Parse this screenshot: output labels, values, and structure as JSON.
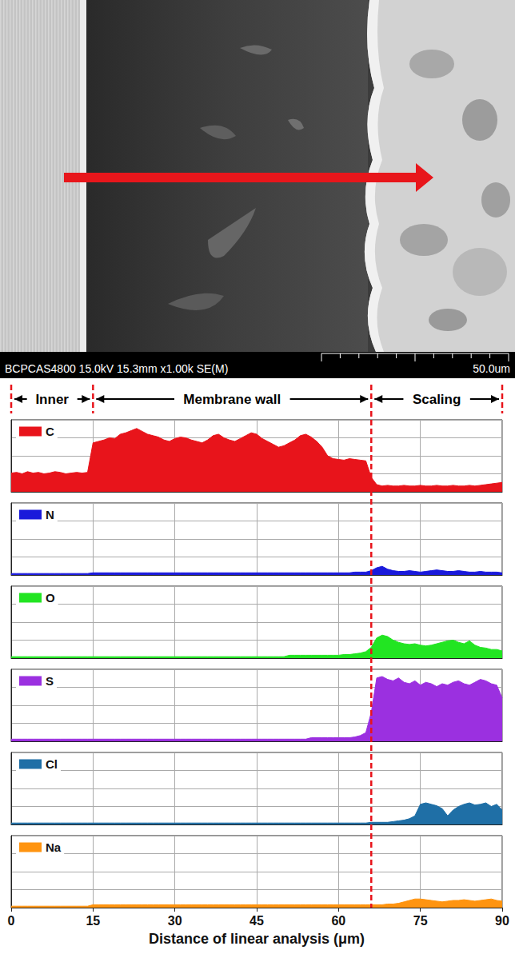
{
  "image": {
    "caption": "BCPCAS4800 15.0kV 15.3mm x1.00k SE(M)",
    "scale_bar": "50.0um"
  },
  "regions": [
    {
      "label": "Inner",
      "from": 0,
      "to": 15
    },
    {
      "label": "Membrane wall",
      "from": 15,
      "to": 66
    },
    {
      "label": "Scaling",
      "from": 66,
      "to": 90
    }
  ],
  "chart_data": [
    {
      "type": "area",
      "legend": "upper left",
      "grid": true,
      "tick_labels": false,
      "xlim": [
        0,
        90
      ],
      "xticks": [
        0,
        15,
        30,
        45,
        60,
        75,
        90
      ],
      "ylim": [
        0,
        100
      ],
      "yticks": [
        0,
        25,
        50,
        75,
        100
      ],
      "x": [
        0,
        1,
        2,
        3,
        4,
        5,
        6,
        7,
        8,
        9,
        10,
        11,
        12,
        13,
        14,
        15,
        16,
        17,
        18,
        19,
        20,
        21,
        22,
        23,
        24,
        25,
        26,
        27,
        28,
        29,
        30,
        31,
        32,
        33,
        34,
        35,
        36,
        37,
        38,
        39,
        40,
        41,
        42,
        43,
        44,
        45,
        46,
        47,
        48,
        49,
        50,
        51,
        52,
        53,
        54,
        55,
        56,
        57,
        58,
        59,
        60,
        61,
        62,
        63,
        64,
        65,
        66,
        67,
        68,
        69,
        70,
        71,
        72,
        73,
        74,
        75,
        76,
        77,
        78,
        79,
        80,
        81,
        82,
        83,
        84,
        85,
        86,
        87,
        88,
        89,
        90
      ],
      "series": [
        {
          "name": "C",
          "color": "#e8141b",
          "values": [
            26,
            27,
            25,
            28,
            26,
            27,
            25,
            26,
            28,
            27,
            25,
            26,
            27,
            26,
            27,
            68,
            70,
            72,
            75,
            74,
            80,
            82,
            85,
            88,
            84,
            80,
            78,
            76,
            72,
            70,
            74,
            76,
            75,
            72,
            70,
            68,
            72,
            78,
            80,
            75,
            72,
            70,
            74,
            78,
            82,
            80,
            74,
            70,
            66,
            62,
            64,
            68,
            72,
            78,
            80,
            76,
            70,
            62,
            50,
            46,
            45,
            44,
            46,
            45,
            44,
            43,
            20,
            10,
            8,
            9,
            8,
            8,
            9,
            8,
            8,
            9,
            8,
            8,
            9,
            8,
            8,
            9,
            8,
            8,
            9,
            8,
            9,
            10,
            11,
            12,
            13
          ]
        }
      ]
    },
    {
      "type": "area",
      "legend": "upper left",
      "grid": true,
      "tick_labels": false,
      "xlim": [
        0,
        90
      ],
      "xticks": [
        0,
        15,
        30,
        45,
        60,
        75,
        90
      ],
      "ylim": [
        0,
        100
      ],
      "yticks": [
        0,
        25,
        50,
        75,
        100
      ],
      "x": [
        0,
        1,
        2,
        3,
        4,
        5,
        6,
        7,
        8,
        9,
        10,
        11,
        12,
        13,
        14,
        15,
        16,
        17,
        18,
        19,
        20,
        21,
        22,
        23,
        24,
        25,
        26,
        27,
        28,
        29,
        30,
        31,
        32,
        33,
        34,
        35,
        36,
        37,
        38,
        39,
        40,
        41,
        42,
        43,
        44,
        45,
        46,
        47,
        48,
        49,
        50,
        51,
        52,
        53,
        54,
        55,
        56,
        57,
        58,
        59,
        60,
        61,
        62,
        63,
        64,
        65,
        66,
        67,
        68,
        69,
        70,
        71,
        72,
        73,
        74,
        75,
        76,
        77,
        78,
        79,
        80,
        81,
        82,
        83,
        84,
        85,
        86,
        87,
        88,
        89,
        90
      ],
      "series": [
        {
          "name": "N",
          "color": "#1a1adb",
          "values": [
            2,
            2,
            2,
            2,
            2,
            2,
            2,
            2,
            2,
            2,
            2,
            2,
            2,
            2,
            2,
            3,
            3,
            3,
            3,
            3,
            3,
            3,
            3,
            3,
            3,
            3,
            3,
            3,
            3,
            3,
            3,
            3,
            3,
            3,
            3,
            3,
            3,
            3,
            3,
            3,
            3,
            3,
            3,
            3,
            3,
            3,
            3,
            3,
            3,
            3,
            3,
            3,
            3,
            3,
            3,
            3,
            3,
            3,
            3,
            3,
            3,
            3,
            3,
            4,
            4,
            4,
            6,
            10,
            12,
            8,
            6,
            5,
            5,
            6,
            5,
            4,
            5,
            6,
            7,
            6,
            5,
            5,
            6,
            5,
            4,
            4,
            5,
            4,
            4,
            4,
            3
          ]
        }
      ]
    },
    {
      "type": "area",
      "legend": "upper left",
      "grid": true,
      "tick_labels": false,
      "xlim": [
        0,
        90
      ],
      "xticks": [
        0,
        15,
        30,
        45,
        60,
        75,
        90
      ],
      "ylim": [
        0,
        100
      ],
      "yticks": [
        0,
        25,
        50,
        75,
        100
      ],
      "x": [
        0,
        1,
        2,
        3,
        4,
        5,
        6,
        7,
        8,
        9,
        10,
        11,
        12,
        13,
        14,
        15,
        16,
        17,
        18,
        19,
        20,
        21,
        22,
        23,
        24,
        25,
        26,
        27,
        28,
        29,
        30,
        31,
        32,
        33,
        34,
        35,
        36,
        37,
        38,
        39,
        40,
        41,
        42,
        43,
        44,
        45,
        46,
        47,
        48,
        49,
        50,
        51,
        52,
        53,
        54,
        55,
        56,
        57,
        58,
        59,
        60,
        61,
        62,
        63,
        64,
        65,
        66,
        67,
        68,
        69,
        70,
        71,
        72,
        73,
        74,
        75,
        76,
        77,
        78,
        79,
        80,
        81,
        82,
        83,
        84,
        85,
        86,
        87,
        88,
        89,
        90
      ],
      "series": [
        {
          "name": "O",
          "color": "#22e522",
          "values": [
            2,
            2,
            2,
            2,
            2,
            2,
            2,
            2,
            2,
            2,
            2,
            2,
            2,
            2,
            2,
            2,
            2,
            2,
            2,
            2,
            2,
            2,
            2,
            2,
            2,
            2,
            2,
            2,
            2,
            2,
            2,
            2,
            2,
            2,
            2,
            2,
            2,
            2,
            2,
            2,
            2,
            2,
            2,
            2,
            2,
            2,
            2,
            2,
            2,
            2,
            2,
            4,
            4,
            4,
            4,
            4,
            4,
            4,
            4,
            4,
            4,
            5,
            5,
            6,
            7,
            9,
            15,
            28,
            32,
            30,
            25,
            22,
            20,
            19,
            20,
            18,
            17,
            18,
            20,
            22,
            24,
            25,
            22,
            20,
            24,
            18,
            15,
            14,
            12,
            12,
            10
          ]
        }
      ]
    },
    {
      "type": "area",
      "legend": "upper left",
      "grid": true,
      "tick_labels": false,
      "xlim": [
        0,
        90
      ],
      "xticks": [
        0,
        15,
        30,
        45,
        60,
        75,
        90
      ],
      "ylim": [
        0,
        100
      ],
      "yticks": [
        0,
        25,
        50,
        75,
        100
      ],
      "x": [
        0,
        1,
        2,
        3,
        4,
        5,
        6,
        7,
        8,
        9,
        10,
        11,
        12,
        13,
        14,
        15,
        16,
        17,
        18,
        19,
        20,
        21,
        22,
        23,
        24,
        25,
        26,
        27,
        28,
        29,
        30,
        31,
        32,
        33,
        34,
        35,
        36,
        37,
        38,
        39,
        40,
        41,
        42,
        43,
        44,
        45,
        46,
        47,
        48,
        49,
        50,
        51,
        52,
        53,
        54,
        55,
        56,
        57,
        58,
        59,
        60,
        61,
        62,
        63,
        64,
        65,
        66,
        67,
        68,
        69,
        70,
        71,
        72,
        73,
        74,
        75,
        76,
        77,
        78,
        79,
        80,
        81,
        82,
        83,
        84,
        85,
        86,
        87,
        88,
        89,
        90
      ],
      "series": [
        {
          "name": "S",
          "color": "#9b30e0",
          "values": [
            3,
            3,
            3,
            3,
            3,
            3,
            3,
            3,
            3,
            3,
            3,
            3,
            3,
            3,
            3,
            3,
            3,
            3,
            3,
            3,
            3,
            3,
            3,
            3,
            3,
            3,
            3,
            3,
            3,
            3,
            3,
            3,
            3,
            3,
            3,
            3,
            3,
            3,
            3,
            3,
            3,
            3,
            3,
            3,
            3,
            3,
            3,
            3,
            3,
            3,
            3,
            3,
            3,
            3,
            3,
            5,
            5,
            5,
            5,
            5,
            5,
            5,
            5,
            6,
            8,
            12,
            40,
            88,
            90,
            86,
            84,
            88,
            82,
            80,
            84,
            78,
            82,
            80,
            76,
            80,
            78,
            82,
            84,
            80,
            78,
            82,
            86,
            84,
            80,
            78,
            60
          ]
        }
      ]
    },
    {
      "type": "area",
      "legend": "upper left",
      "grid": true,
      "tick_labels": false,
      "xlim": [
        0,
        90
      ],
      "xticks": [
        0,
        15,
        30,
        45,
        60,
        75,
        90
      ],
      "ylim": [
        0,
        100
      ],
      "yticks": [
        0,
        25,
        50,
        75,
        100
      ],
      "x": [
        0,
        1,
        2,
        3,
        4,
        5,
        6,
        7,
        8,
        9,
        10,
        11,
        12,
        13,
        14,
        15,
        16,
        17,
        18,
        19,
        20,
        21,
        22,
        23,
        24,
        25,
        26,
        27,
        28,
        29,
        30,
        31,
        32,
        33,
        34,
        35,
        36,
        37,
        38,
        39,
        40,
        41,
        42,
        43,
        44,
        45,
        46,
        47,
        48,
        49,
        50,
        51,
        52,
        53,
        54,
        55,
        56,
        57,
        58,
        59,
        60,
        61,
        62,
        63,
        64,
        65,
        66,
        67,
        68,
        69,
        70,
        71,
        72,
        73,
        74,
        75,
        76,
        77,
        78,
        79,
        80,
        81,
        82,
        83,
        84,
        85,
        86,
        87,
        88,
        89,
        90
      ],
      "series": [
        {
          "name": "Cl",
          "color": "#1f6fa6",
          "values": [
            2,
            2,
            2,
            2,
            2,
            2,
            2,
            2,
            2,
            2,
            2,
            2,
            2,
            2,
            2,
            2,
            2,
            2,
            2,
            2,
            2,
            2,
            2,
            2,
            2,
            2,
            2,
            2,
            2,
            2,
            2,
            2,
            2,
            2,
            2,
            2,
            2,
            2,
            2,
            2,
            2,
            2,
            2,
            2,
            2,
            2,
            2,
            2,
            2,
            2,
            2,
            2,
            2,
            2,
            2,
            2,
            2,
            2,
            2,
            2,
            2,
            2,
            2,
            2,
            2,
            2,
            3,
            3,
            3,
            3,
            4,
            5,
            6,
            8,
            12,
            28,
            30,
            28,
            26,
            22,
            12,
            20,
            25,
            28,
            30,
            27,
            28,
            30,
            25,
            28,
            20
          ]
        }
      ]
    },
    {
      "type": "area",
      "legend": "upper left",
      "grid": true,
      "tick_labels": "x",
      "xlabel": "Distance of linear analysis (μm)",
      "xlim": [
        0,
        90
      ],
      "xticks": [
        0,
        15,
        30,
        45,
        60,
        75,
        90
      ],
      "ylim": [
        0,
        100
      ],
      "yticks": [
        0,
        25,
        50,
        75,
        100
      ],
      "x": [
        0,
        1,
        2,
        3,
        4,
        5,
        6,
        7,
        8,
        9,
        10,
        11,
        12,
        13,
        14,
        15,
        16,
        17,
        18,
        19,
        20,
        21,
        22,
        23,
        24,
        25,
        26,
        27,
        28,
        29,
        30,
        31,
        32,
        33,
        34,
        35,
        36,
        37,
        38,
        39,
        40,
        41,
        42,
        43,
        44,
        45,
        46,
        47,
        48,
        49,
        50,
        51,
        52,
        53,
        54,
        55,
        56,
        57,
        58,
        59,
        60,
        61,
        62,
        63,
        64,
        65,
        66,
        67,
        68,
        69,
        70,
        71,
        72,
        73,
        74,
        75,
        76,
        77,
        78,
        79,
        80,
        81,
        82,
        83,
        84,
        85,
        86,
        87,
        88,
        89,
        90
      ],
      "series": [
        {
          "name": "Na",
          "color": "#ff9410",
          "values": [
            2,
            2,
            2,
            2,
            2,
            2,
            2,
            2,
            2,
            2,
            2,
            2,
            2,
            2,
            2,
            4,
            4,
            4,
            4,
            4,
            4,
            4,
            4,
            4,
            4,
            4,
            4,
            4,
            4,
            4,
            4,
            4,
            4,
            4,
            4,
            4,
            4,
            4,
            4,
            4,
            4,
            4,
            4,
            4,
            4,
            4,
            4,
            4,
            4,
            4,
            4,
            4,
            4,
            4,
            4,
            4,
            4,
            4,
            4,
            4,
            4,
            4,
            4,
            4,
            4,
            4,
            4,
            4,
            4,
            5,
            5,
            6,
            8,
            10,
            12,
            12,
            11,
            10,
            9,
            8,
            9,
            10,
            10,
            11,
            10,
            9,
            10,
            11,
            12,
            10,
            9
          ]
        }
      ]
    }
  ]
}
